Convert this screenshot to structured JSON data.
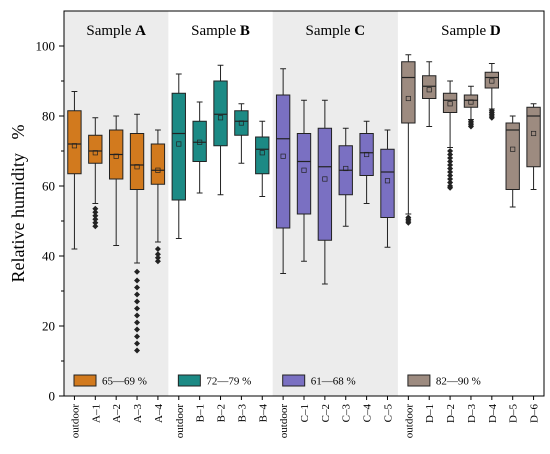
{
  "chart_data": {
    "type": "box",
    "ylabel": "Relative humidity   %",
    "ylim": [
      0,
      110
    ],
    "yticks": [
      "0",
      "20",
      "40",
      "60",
      "80",
      "100"
    ],
    "categories": [
      "outdoor",
      "A–1",
      "A–2",
      "A–3",
      "A–4",
      "outdoor",
      "B–1",
      "B–2",
      "B–3",
      "B–4",
      "outdoor",
      "C–1",
      "C–2",
      "C–3",
      "C–4",
      "C–5",
      "outdoor",
      "D–1",
      "D–2",
      "D–3",
      "D–4",
      "D–5",
      "D–6"
    ],
    "groups": [
      {
        "title_prefix": "Sample ",
        "title_letter": "A",
        "shaded": true,
        "color": "#d27a1e",
        "legend": "65—69 %",
        "boxes": [
          {
            "label": "outdoor",
            "whisker_low": 42,
            "q1": 63.5,
            "median": 72,
            "q3": 81.5,
            "whisker_high": 87,
            "mean": 71.5,
            "outliers": []
          },
          {
            "label": "A–1",
            "whisker_low": 55,
            "q1": 66.5,
            "median": 70,
            "q3": 74.5,
            "whisker_high": 79.5,
            "mean": 69.5,
            "outliers": [
              53.5,
              52.5,
              51.5,
              50.5,
              49.5,
              48.5
            ]
          },
          {
            "label": "A–2",
            "whisker_low": 43,
            "q1": 62,
            "median": 69,
            "q3": 76,
            "whisker_high": 80,
            "mean": 68.5,
            "outliers": []
          },
          {
            "label": "A–3",
            "whisker_low": 38,
            "q1": 59,
            "median": 66,
            "q3": 75,
            "whisker_high": 80.5,
            "mean": 65.5,
            "outliers": [
              35.5,
              33,
              31,
              29,
              27,
              25,
              23,
              21,
              19,
              17,
              15,
              13
            ]
          },
          {
            "label": "A–4",
            "whisker_low": 44,
            "q1": 60.5,
            "median": 64.5,
            "q3": 72,
            "whisker_high": 76,
            "mean": 64.5,
            "outliers": [
              42,
              40.5,
              39.5,
              38.5
            ]
          }
        ]
      },
      {
        "title_prefix": "Sample ",
        "title_letter": "B",
        "shaded": false,
        "color": "#1c8a85",
        "legend": "72—79 %",
        "boxes": [
          {
            "label": "outdoor",
            "whisker_low": 45,
            "q1": 56,
            "median": 75,
            "q3": 86.5,
            "whisker_high": 92,
            "mean": 72,
            "outliers": []
          },
          {
            "label": "B–1",
            "whisker_low": 58,
            "q1": 67,
            "median": 72.5,
            "q3": 78.5,
            "whisker_high": 84,
            "mean": 72.5,
            "outliers": []
          },
          {
            "label": "B–2",
            "whisker_low": 57.5,
            "q1": 71.5,
            "median": 80.5,
            "q3": 90,
            "whisker_high": 94.5,
            "mean": 79.5,
            "outliers": []
          },
          {
            "label": "B–3",
            "whisker_low": 66.5,
            "q1": 74.5,
            "median": 78.5,
            "q3": 81.5,
            "whisker_high": 83.5,
            "mean": 78,
            "outliers": []
          },
          {
            "label": "B–4",
            "whisker_low": 57,
            "q1": 63.5,
            "median": 70.5,
            "q3": 74,
            "whisker_high": 78.5,
            "mean": 69.5,
            "outliers": []
          }
        ]
      },
      {
        "title_prefix": "Sample ",
        "title_letter": "C",
        "shaded": true,
        "color": "#7a70c2",
        "legend": "61—68 %",
        "boxes": [
          {
            "label": "outdoor",
            "whisker_low": 35,
            "q1": 48,
            "median": 73.5,
            "q3": 86,
            "whisker_high": 93.5,
            "mean": 68.5,
            "outliers": []
          },
          {
            "label": "C–1",
            "whisker_low": 38.5,
            "q1": 52,
            "median": 67,
            "q3": 75,
            "whisker_high": 84.5,
            "mean": 64.5,
            "outliers": []
          },
          {
            "label": "C–2",
            "whisker_low": 32,
            "q1": 44.5,
            "median": 65.5,
            "q3": 76.5,
            "whisker_high": 84.5,
            "mean": 62,
            "outliers": []
          },
          {
            "label": "C–3",
            "whisker_low": 48.5,
            "q1": 57.5,
            "median": 64.5,
            "q3": 71.5,
            "whisker_high": 76.5,
            "mean": 65,
            "outliers": []
          },
          {
            "label": "C–4",
            "whisker_low": 55,
            "q1": 63,
            "median": 69.5,
            "q3": 75,
            "whisker_high": 78.5,
            "mean": 69,
            "outliers": []
          },
          {
            "label": "C–5",
            "whisker_low": 42.5,
            "q1": 51,
            "median": 64,
            "q3": 70.5,
            "whisker_high": 76,
            "mean": 61.5,
            "outliers": []
          }
        ]
      },
      {
        "title_prefix": "Sample ",
        "title_letter": "D",
        "shaded": false,
        "color": "#9d8b80",
        "legend": "82—90 %",
        "boxes": [
          {
            "label": "outdoor",
            "whisker_low": 52,
            "q1": 78,
            "median": 91,
            "q3": 95.5,
            "whisker_high": 97.5,
            "mean": 85,
            "outliers": [
              51,
              50.5,
              50,
              49.5
            ]
          },
          {
            "label": "D–1",
            "whisker_low": 77,
            "q1": 85,
            "median": 88.5,
            "q3": 91.5,
            "whisker_high": 95.5,
            "mean": 87.5,
            "outliers": []
          },
          {
            "label": "D–2",
            "whisker_low": 71,
            "q1": 81,
            "median": 84.5,
            "q3": 86.5,
            "whisker_high": 90,
            "mean": 83.5,
            "outliers": [
              70,
              69,
              68,
              67,
              66,
              65,
              64,
              63,
              62,
              61,
              60,
              59.5
            ]
          },
          {
            "label": "D–3",
            "whisker_low": 79,
            "q1": 82.5,
            "median": 84.5,
            "q3": 86,
            "whisker_high": 88.5,
            "mean": 84,
            "outliers": [
              78.5,
              78,
              77.5,
              77
            ]
          },
          {
            "label": "D–4",
            "whisker_low": 82,
            "q1": 88,
            "median": 91,
            "q3": 92.5,
            "whisker_high": 95,
            "mean": 90,
            "outliers": [
              81.5,
              81,
              80.5,
              80,
              79.5
            ]
          },
          {
            "label": "D–5",
            "whisker_low": 54,
            "q1": 59,
            "median": 76,
            "q3": 78,
            "whisker_high": 80,
            "mean": 70.5,
            "outliers": []
          },
          {
            "label": "D–6",
            "whisker_low": 59,
            "q1": 65.5,
            "median": 80,
            "q3": 82.5,
            "whisker_high": 83.5,
            "mean": 75,
            "outliers": []
          }
        ]
      }
    ]
  }
}
